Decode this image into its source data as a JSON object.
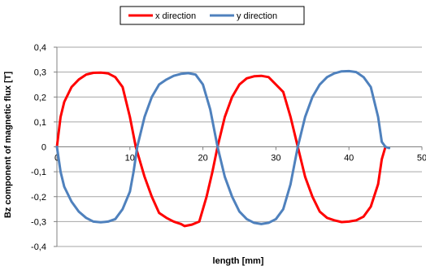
{
  "chart_data": {
    "type": "line",
    "title": "",
    "xlabel": "length [mm]",
    "ylabel": "Bz component of magnetic flux [T]",
    "xlim": [
      0,
      50
    ],
    "ylim": [
      -0.4,
      0.4
    ],
    "x_ticks": [
      0,
      10,
      20,
      30,
      40,
      50
    ],
    "x_tick_labels": [
      "0",
      "10",
      "20",
      "30",
      "40",
      "50"
    ],
    "y_ticks": [
      -0.4,
      -0.3,
      -0.2,
      -0.1,
      0,
      0.1,
      0.2,
      0.3,
      0.4
    ],
    "y_tick_labels": [
      "-0,4",
      "-0,3",
      "-0,2",
      "-0,1",
      "0",
      "0,1",
      "0,2",
      "0,3",
      "0,4"
    ],
    "grid": "horizontal",
    "legend_position": "top",
    "series": [
      {
        "name": "x direction",
        "color": "#ff0000",
        "points": [
          [
            0,
            0
          ],
          [
            0.5,
            0.12
          ],
          [
            1,
            0.18
          ],
          [
            2,
            0.24
          ],
          [
            3,
            0.27
          ],
          [
            4,
            0.29
          ],
          [
            5,
            0.297
          ],
          [
            6,
            0.298
          ],
          [
            7,
            0.295
          ],
          [
            8,
            0.28
          ],
          [
            9,
            0.24
          ],
          [
            10,
            0.12
          ],
          [
            10.8,
            0
          ],
          [
            12,
            -0.12
          ],
          [
            13,
            -0.2
          ],
          [
            14,
            -0.265
          ],
          [
            15,
            -0.285
          ],
          [
            16,
            -0.3
          ],
          [
            17,
            -0.31
          ],
          [
            17.5,
            -0.318
          ],
          [
            18.5,
            -0.312
          ],
          [
            19.5,
            -0.3
          ],
          [
            20.5,
            -0.2
          ],
          [
            21.3,
            -0.1
          ],
          [
            22,
            0
          ],
          [
            23,
            0.12
          ],
          [
            24,
            0.2
          ],
          [
            25,
            0.25
          ],
          [
            26,
            0.275
          ],
          [
            27,
            0.283
          ],
          [
            28,
            0.285
          ],
          [
            29,
            0.28
          ],
          [
            30,
            0.25
          ],
          [
            31,
            0.22
          ],
          [
            32,
            0.12
          ],
          [
            33,
            0
          ],
          [
            34,
            -0.12
          ],
          [
            35,
            -0.2
          ],
          [
            36,
            -0.26
          ],
          [
            37,
            -0.285
          ],
          [
            38,
            -0.295
          ],
          [
            39,
            -0.302
          ],
          [
            40,
            -0.3
          ],
          [
            41,
            -0.295
          ],
          [
            42,
            -0.28
          ],
          [
            43,
            -0.24
          ],
          [
            44,
            -0.15
          ],
          [
            44.5,
            -0.05
          ],
          [
            45,
            0
          ]
        ]
      },
      {
        "name": "y direction",
        "color": "#4f81bd",
        "points": [
          [
            0,
            0
          ],
          [
            0.5,
            -0.1
          ],
          [
            1,
            -0.16
          ],
          [
            2,
            -0.22
          ],
          [
            3,
            -0.26
          ],
          [
            4,
            -0.285
          ],
          [
            5,
            -0.3
          ],
          [
            6,
            -0.303
          ],
          [
            7,
            -0.3
          ],
          [
            8,
            -0.29
          ],
          [
            9,
            -0.25
          ],
          [
            10,
            -0.18
          ],
          [
            10.5,
            -0.1
          ],
          [
            11,
            0
          ],
          [
            12,
            0.12
          ],
          [
            13,
            0.2
          ],
          [
            14,
            0.25
          ],
          [
            15,
            0.27
          ],
          [
            16,
            0.285
          ],
          [
            17,
            0.293
          ],
          [
            18,
            0.296
          ],
          [
            19,
            0.29
          ],
          [
            20,
            0.25
          ],
          [
            21,
            0.15
          ],
          [
            22,
            0
          ],
          [
            23,
            -0.12
          ],
          [
            24,
            -0.2
          ],
          [
            25,
            -0.26
          ],
          [
            26,
            -0.29
          ],
          [
            27,
            -0.305
          ],
          [
            28,
            -0.31
          ],
          [
            29,
            -0.305
          ],
          [
            30,
            -0.29
          ],
          [
            31,
            -0.25
          ],
          [
            32,
            -0.15
          ],
          [
            33,
            0
          ],
          [
            34,
            0.12
          ],
          [
            35,
            0.2
          ],
          [
            36,
            0.25
          ],
          [
            37,
            0.28
          ],
          [
            38,
            0.295
          ],
          [
            39,
            0.303
          ],
          [
            40,
            0.304
          ],
          [
            41,
            0.3
          ],
          [
            42,
            0.28
          ],
          [
            43,
            0.24
          ],
          [
            44,
            0.12
          ],
          [
            44.5,
            0.02
          ],
          [
            45,
            0
          ],
          [
            45.5,
            -0.005
          ]
        ]
      }
    ]
  }
}
